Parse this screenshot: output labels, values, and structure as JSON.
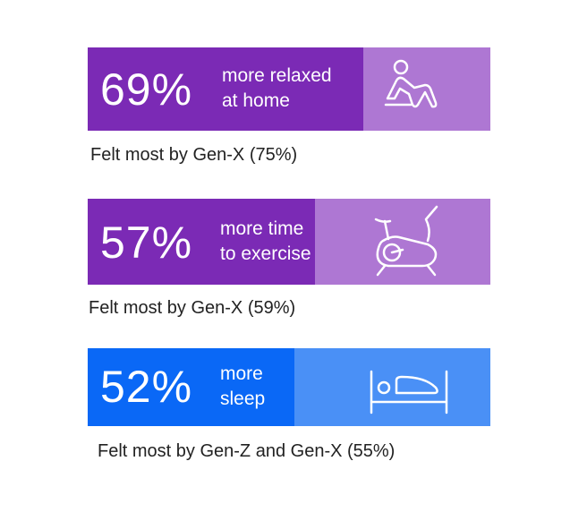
{
  "chart_data": {
    "type": "bar",
    "orientation": "horizontal",
    "xlim": [
      0,
      100
    ],
    "items": [
      {
        "value": 69,
        "value_label": "69%",
        "label": "more relaxed\nat home",
        "caption": "Felt most by Gen-X (75%)",
        "icon": "person-relaxing-icon",
        "fill_color": "#7B2AB5",
        "track_color": "#AE77D3"
      },
      {
        "value": 57,
        "value_label": "57%",
        "label": "more time\nto exercise",
        "caption": "Felt most by Gen-X (59%)",
        "icon": "exercise-bike-icon",
        "fill_color": "#7B2AB5",
        "track_color": "#AE77D3"
      },
      {
        "value": 52,
        "value_label": "52%",
        "label": "more\nsleep",
        "caption": "Felt most by Gen-Z and Gen-X (55%)",
        "icon": "bed-icon",
        "fill_color": "#0A68F6",
        "track_color": "#4A90F6"
      }
    ]
  }
}
